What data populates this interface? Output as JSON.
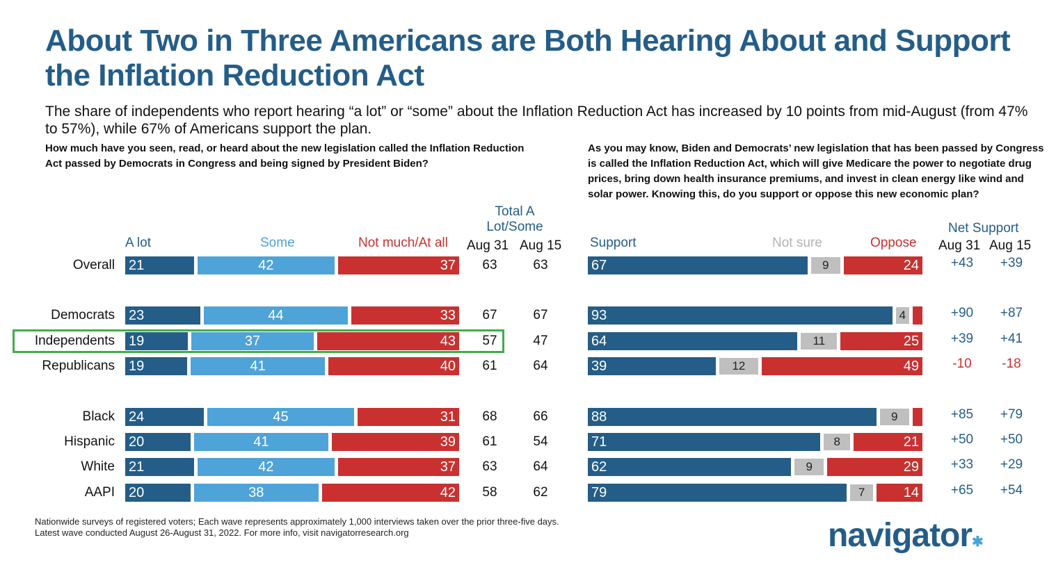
{
  "title": "About Two in Three Americans are Both Hearing About and Support the Inflation Reduction Act",
  "subtitle": "The share of independents who report hearing “a lot” or “some” about the Inflation Reduction Act has increased by 10 points from mid-August (from 47% to 57%), while 67% of Americans support the plan.",
  "footer_line1": "Nationwide surveys of registered voters; Each wave represents approximately 1,000 interviews taken over the prior three-five days.",
  "footer_line2": "Latest wave conducted August 26-August 31, 2022. For more info, visit navigatorresearch.org",
  "logo_text": "navigator",
  "colors": {
    "dark_blue": "#245d87",
    "light_blue": "#4ea3d8",
    "red": "#c8312f",
    "grey": "#bfbfbf",
    "highlight_green": "#3fae49"
  },
  "left_chart": {
    "question": "How much have you seen, read, or heard about the new legislation called the Inflation Reduction Act passed by Democrats in Congress and being signed by President Biden?",
    "legend": [
      "A lot",
      "Some",
      "Not much/At all"
    ],
    "total_header": "Total A Lot/Some",
    "col_aug31": "Aug 31",
    "col_aug15": "Aug 15"
  },
  "right_chart": {
    "question": "As you may know, Biden and Democrats’ new legislation that has been passed by Congress is called the Inflation Reduction Act, which will give Medicare the power to negotiate drug prices, bring down health insurance premiums, and invest in clean energy like wind and solar power. Knowing this, do you support or oppose this new economic plan?",
    "legend": [
      "Support",
      "Not sure",
      "Oppose"
    ],
    "net_header": "Net Support",
    "col_aug31": "Aug 31",
    "col_aug15": "Aug 15"
  },
  "chart_data": [
    {
      "type": "bar",
      "stacked": true,
      "orientation": "horizontal",
      "categories": [
        "Overall",
        "Democrats",
        "Independents",
        "Republicans",
        "Black",
        "Hispanic",
        "White",
        "AAPI"
      ],
      "series": [
        {
          "name": "A lot",
          "values": [
            21,
            23,
            19,
            19,
            24,
            20,
            21,
            20
          ]
        },
        {
          "name": "Some",
          "values": [
            42,
            44,
            37,
            41,
            45,
            41,
            42,
            38
          ]
        },
        {
          "name": "Not much/At all",
          "values": [
            37,
            33,
            43,
            40,
            31,
            39,
            37,
            42
          ]
        }
      ],
      "total_a_lot_some": {
        "aug31": [
          "63",
          "67",
          "57",
          "61",
          "68",
          "61",
          "63",
          "58"
        ],
        "aug15": [
          "63",
          "67",
          "47",
          "64",
          "66",
          "54",
          "64",
          "62"
        ]
      }
    },
    {
      "type": "bar",
      "stacked": true,
      "orientation": "horizontal",
      "categories": [
        "Overall",
        "Democrats",
        "Independents",
        "Republicans",
        "Black",
        "Hispanic",
        "White",
        "AAPI"
      ],
      "series": [
        {
          "name": "Support",
          "values": [
            67,
            93,
            64,
            39,
            88,
            71,
            62,
            79
          ]
        },
        {
          "name": "Not sure",
          "values": [
            9,
            4,
            11,
            12,
            9,
            8,
            9,
            7
          ]
        },
        {
          "name": "Oppose",
          "values": [
            24,
            3,
            25,
            49,
            3,
            21,
            29,
            14
          ]
        }
      ],
      "hidden_labels": {
        "Oppose": [
          false,
          true,
          false,
          false,
          true,
          false,
          false,
          false
        ]
      },
      "net_support": {
        "aug31": [
          "+43",
          "+90",
          "+39",
          "-10",
          "+85",
          "+50",
          "+33",
          "+65"
        ],
        "aug15": [
          "+39",
          "+87",
          "+41",
          "-18",
          "+79",
          "+50",
          "+29",
          "+54"
        ]
      }
    }
  ]
}
